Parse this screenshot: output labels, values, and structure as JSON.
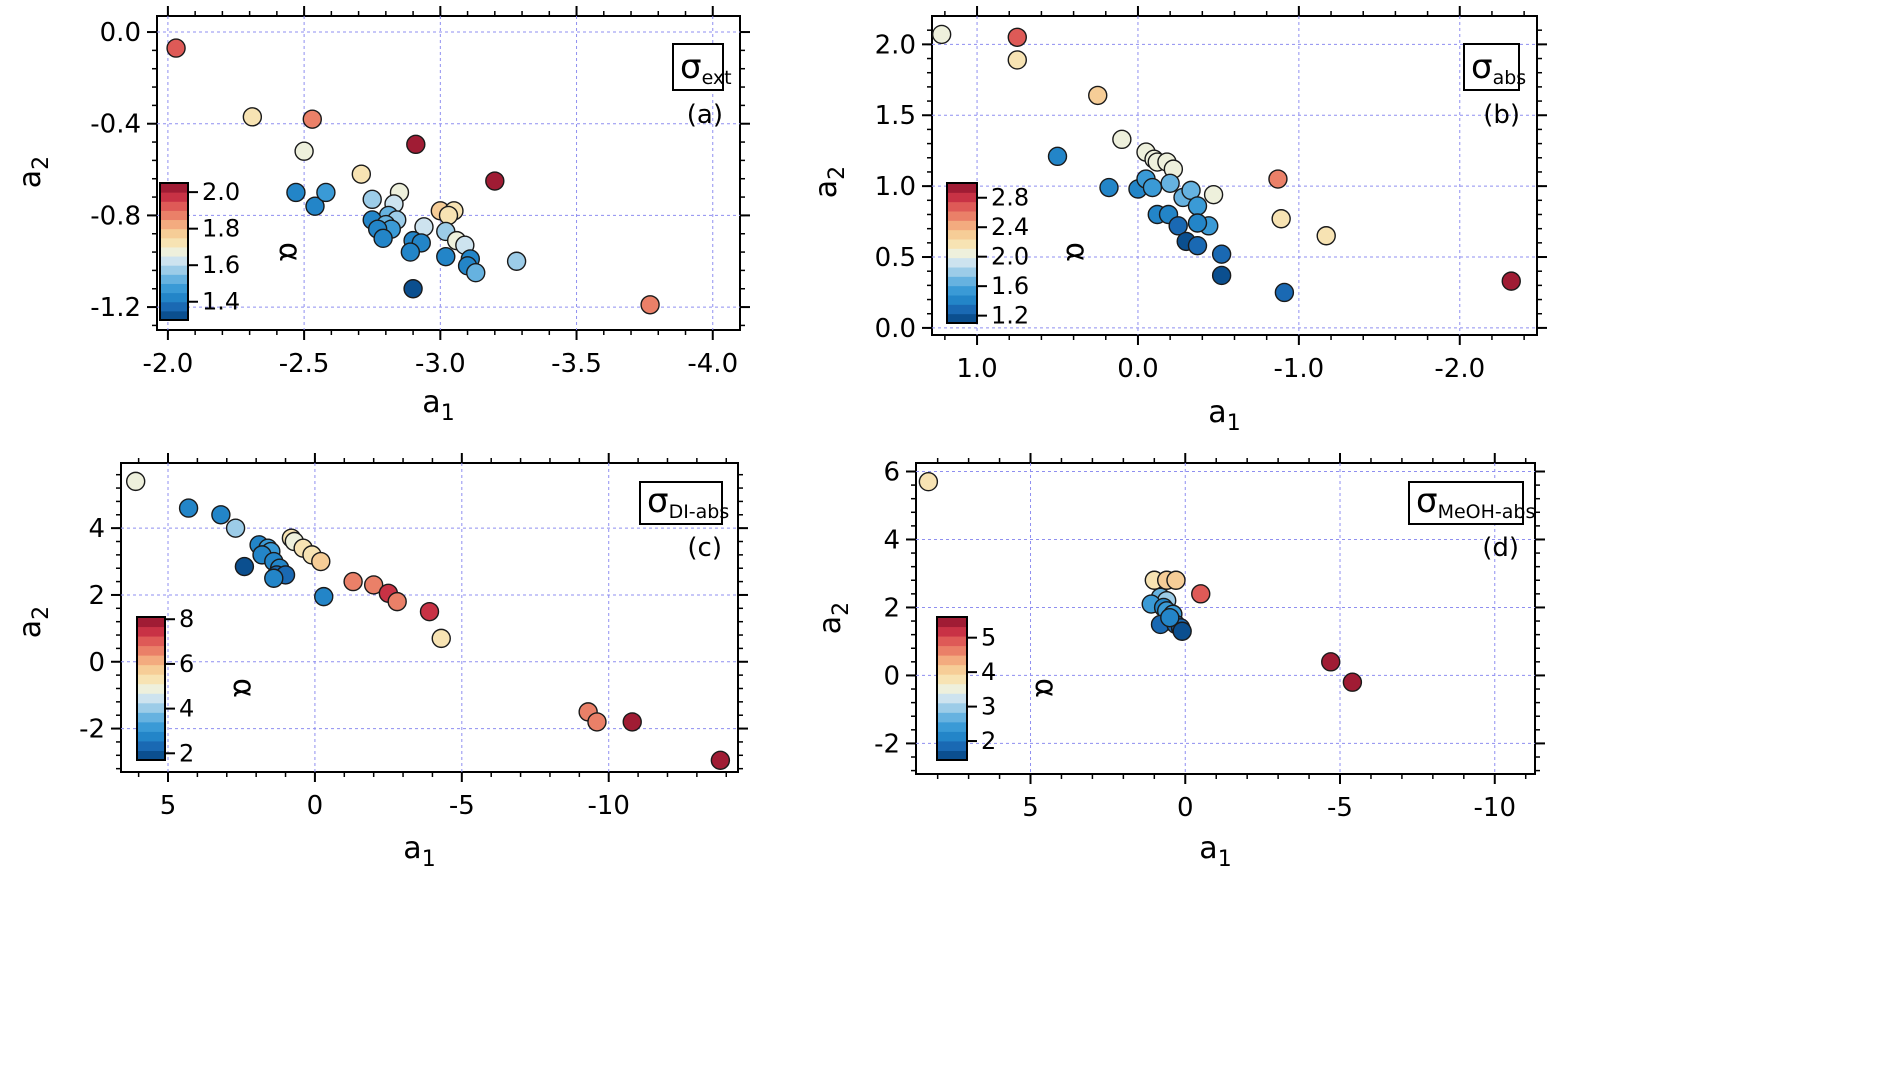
{
  "colorbar_palette": [
    "#0b4f8f",
    "#1a69b3",
    "#2385c8",
    "#3a9ad6",
    "#66b2e0",
    "#9ccce8",
    "#cde3ef",
    "#eef0dc",
    "#f7e3b3",
    "#f6cd97",
    "#f3ab7f",
    "#ea8068",
    "#de5a57",
    "#c83245",
    "#a01c34"
  ],
  "colorbar_label": "α",
  "chart_data": [
    {
      "type": "scatter",
      "panel_tag": "(a)",
      "title_main": "σ",
      "title_sub": "ext",
      "xlabel_main": "a",
      "xlabel_sub": "1",
      "ylabel_main": "a",
      "ylabel_sub": "2",
      "xlim": [
        -1.96,
        -4.1
      ],
      "ylim": [
        -1.3,
        0.07
      ],
      "xticks": [
        -2.0,
        -2.5,
        -3.0,
        -3.5,
        -4.0
      ],
      "xtick_labels": [
        "-2.0",
        "-2.5",
        "-3.0",
        "-3.5",
        "-4.0"
      ],
      "yticks": [
        0.0,
        -0.4,
        -0.8,
        -1.2
      ],
      "ytick_labels": [
        "0.0",
        "-0.4",
        "-0.8",
        "-1.2"
      ],
      "colorbar": {
        "range": [
          1.3,
          2.05
        ],
        "ticks": [
          1.4,
          1.6,
          1.8,
          2.0
        ],
        "tick_labels": [
          "1.4",
          "1.6",
          "1.8",
          "2.0"
        ]
      },
      "points": [
        {
          "x": -2.03,
          "y": -0.07,
          "c": 1.92
        },
        {
          "x": -2.31,
          "y": -0.37,
          "c": 1.72
        },
        {
          "x": -2.53,
          "y": -0.38,
          "c": 1.88
        },
        {
          "x": -2.5,
          "y": -0.52,
          "c": 1.68
        },
        {
          "x": -2.91,
          "y": -0.49,
          "c": 2.03
        },
        {
          "x": -3.2,
          "y": -0.65,
          "c": 2.03
        },
        {
          "x": -2.71,
          "y": -0.62,
          "c": 1.74
        },
        {
          "x": -2.47,
          "y": -0.7,
          "c": 1.45
        },
        {
          "x": -2.54,
          "y": -0.76,
          "c": 1.43
        },
        {
          "x": -2.58,
          "y": -0.7,
          "c": 1.47
        },
        {
          "x": -2.75,
          "y": -0.73,
          "c": 1.58
        },
        {
          "x": -2.85,
          "y": -0.7,
          "c": 1.66
        },
        {
          "x": -2.83,
          "y": -0.75,
          "c": 1.62
        },
        {
          "x": -3.0,
          "y": -0.78,
          "c": 1.75
        },
        {
          "x": -3.05,
          "y": -0.78,
          "c": 1.72
        },
        {
          "x": -3.03,
          "y": -0.8,
          "c": 1.72
        },
        {
          "x": -2.81,
          "y": -0.8,
          "c": 1.5
        },
        {
          "x": -2.84,
          "y": -0.82,
          "c": 1.58
        },
        {
          "x": -2.75,
          "y": -0.82,
          "c": 1.45
        },
        {
          "x": -2.8,
          "y": -0.84,
          "c": 1.5
        },
        {
          "x": -2.82,
          "y": -0.86,
          "c": 1.48
        },
        {
          "x": -2.77,
          "y": -0.86,
          "c": 1.42
        },
        {
          "x": -2.94,
          "y": -0.85,
          "c": 1.6
        },
        {
          "x": -3.02,
          "y": -0.87,
          "c": 1.58
        },
        {
          "x": -2.79,
          "y": -0.9,
          "c": 1.43
        },
        {
          "x": -2.9,
          "y": -0.91,
          "c": 1.42
        },
        {
          "x": -2.93,
          "y": -0.92,
          "c": 1.44
        },
        {
          "x": -3.06,
          "y": -0.91,
          "c": 1.68
        },
        {
          "x": -3.09,
          "y": -0.93,
          "c": 1.6
        },
        {
          "x": -2.89,
          "y": -0.96,
          "c": 1.45
        },
        {
          "x": -3.02,
          "y": -0.98,
          "c": 1.44
        },
        {
          "x": -3.11,
          "y": -0.99,
          "c": 1.44
        },
        {
          "x": -3.1,
          "y": -1.02,
          "c": 1.45
        },
        {
          "x": -3.13,
          "y": -1.05,
          "c": 1.52
        },
        {
          "x": -3.28,
          "y": -1.0,
          "c": 1.58
        },
        {
          "x": -2.9,
          "y": -1.12,
          "c": 1.32
        },
        {
          "x": -3.77,
          "y": -1.19,
          "c": 1.88
        }
      ]
    },
    {
      "type": "scatter",
      "panel_tag": "(b)",
      "title_main": "σ",
      "title_sub": "abs",
      "xlabel_main": "a",
      "xlabel_sub": "1",
      "ylabel_main": "a",
      "ylabel_sub": "2",
      "xlim": [
        1.28,
        -2.48
      ],
      "ylim": [
        -0.05,
        2.2
      ],
      "xticks": [
        1.0,
        0.0,
        -1.0,
        -2.0
      ],
      "xtick_labels": [
        "1.0",
        "0.0",
        "-1.0",
        "-2.0"
      ],
      "yticks": [
        0.0,
        0.5,
        1.0,
        1.5,
        2.0
      ],
      "ytick_labels": [
        "0.0",
        "0.5",
        "1.0",
        "1.5",
        "2.0"
      ],
      "colorbar": {
        "range": [
          1.1,
          3.0
        ],
        "ticks": [
          1.2,
          1.6,
          2.0,
          2.4,
          2.8
        ],
        "tick_labels": [
          "1.2",
          "1.6",
          "2.0",
          "2.4",
          "2.8"
        ]
      },
      "points": [
        {
          "x": 1.22,
          "y": 2.07,
          "c": 2.05
        },
        {
          "x": 0.75,
          "y": 2.05,
          "c": 2.65
        },
        {
          "x": 0.75,
          "y": 1.89,
          "c": 2.2
        },
        {
          "x": 0.25,
          "y": 1.64,
          "c": 2.35
        },
        {
          "x": 0.1,
          "y": 1.33,
          "c": 2.05
        },
        {
          "x": -0.05,
          "y": 1.24,
          "c": 2.05
        },
        {
          "x": -0.1,
          "y": 1.19,
          "c": 2.02
        },
        {
          "x": -0.12,
          "y": 1.17,
          "c": 2.08
        },
        {
          "x": -0.18,
          "y": 1.17,
          "c": 2.03
        },
        {
          "x": -0.22,
          "y": 1.12,
          "c": 2.0
        },
        {
          "x": 0.5,
          "y": 1.21,
          "c": 1.4
        },
        {
          "x": 0.18,
          "y": 0.99,
          "c": 1.4
        },
        {
          "x": 0.0,
          "y": 0.98,
          "c": 1.45
        },
        {
          "x": -0.05,
          "y": 1.05,
          "c": 1.5
        },
        {
          "x": -0.09,
          "y": 0.99,
          "c": 1.5
        },
        {
          "x": -0.2,
          "y": 1.02,
          "c": 1.62
        },
        {
          "x": -0.28,
          "y": 0.92,
          "c": 1.62
        },
        {
          "x": -0.33,
          "y": 0.97,
          "c": 1.66
        },
        {
          "x": -0.37,
          "y": 0.86,
          "c": 1.55
        },
        {
          "x": -0.47,
          "y": 0.94,
          "c": 2.05
        },
        {
          "x": -0.44,
          "y": 0.72,
          "c": 1.6
        },
        {
          "x": -0.12,
          "y": 0.8,
          "c": 1.4
        },
        {
          "x": -0.19,
          "y": 0.8,
          "c": 1.4
        },
        {
          "x": -0.25,
          "y": 0.72,
          "c": 1.35
        },
        {
          "x": -0.37,
          "y": 0.74,
          "c": 1.4
        },
        {
          "x": -0.3,
          "y": 0.61,
          "c": 1.15
        },
        {
          "x": -0.37,
          "y": 0.58,
          "c": 1.3
        },
        {
          "x": -0.52,
          "y": 0.52,
          "c": 1.35
        },
        {
          "x": -0.52,
          "y": 0.37,
          "c": 1.15
        },
        {
          "x": -0.87,
          "y": 1.05,
          "c": 2.55
        },
        {
          "x": -0.89,
          "y": 0.77,
          "c": 2.2
        },
        {
          "x": -0.91,
          "y": 0.25,
          "c": 1.35
        },
        {
          "x": -1.17,
          "y": 0.65,
          "c": 2.2
        },
        {
          "x": -2.32,
          "y": 0.33,
          "c": 3.0
        }
      ]
    },
    {
      "type": "scatter",
      "panel_tag": "(c)",
      "title_main": "σ",
      "title_sub": "DI-abs",
      "xlabel_main": "a",
      "xlabel_sub": "1",
      "ylabel_main": "a",
      "ylabel_sub": "2",
      "xlim": [
        6.6,
        -14.4
      ],
      "ylim": [
        -3.3,
        5.95
      ],
      "xticks": [
        5,
        0,
        -5,
        -10
      ],
      "xtick_labels": [
        "5",
        "0",
        "-5",
        "-10"
      ],
      "yticks": [
        -2,
        0,
        2,
        4
      ],
      "ytick_labels": [
        "-2",
        "0",
        "2",
        "4"
      ],
      "colorbar": {
        "range": [
          1.7,
          8.1
        ],
        "ticks": [
          2,
          4,
          6,
          8
        ],
        "tick_labels": [
          "2",
          "4",
          "6",
          "8"
        ]
      },
      "points": [
        {
          "x": 6.1,
          "y": 5.4,
          "c": 5.0
        },
        {
          "x": 4.3,
          "y": 4.6,
          "c": 2.6
        },
        {
          "x": 3.2,
          "y": 4.4,
          "c": 2.8
        },
        {
          "x": 2.7,
          "y": 4.0,
          "c": 3.9
        },
        {
          "x": 1.9,
          "y": 3.5,
          "c": 2.8
        },
        {
          "x": 1.6,
          "y": 3.4,
          "c": 3.0
        },
        {
          "x": 1.5,
          "y": 3.3,
          "c": 3.2
        },
        {
          "x": 1.8,
          "y": 3.2,
          "c": 2.9
        },
        {
          "x": 1.4,
          "y": 3.0,
          "c": 2.8
        },
        {
          "x": 1.2,
          "y": 2.8,
          "c": 2.7
        },
        {
          "x": 1.3,
          "y": 2.6,
          "c": 2.5
        },
        {
          "x": 1.0,
          "y": 2.6,
          "c": 2.4
        },
        {
          "x": 1.4,
          "y": 2.5,
          "c": 2.6
        },
        {
          "x": 2.4,
          "y": 2.85,
          "c": 1.9
        },
        {
          "x": 0.8,
          "y": 3.7,
          "c": 5.2
        },
        {
          "x": 0.7,
          "y": 3.6,
          "c": 5.1
        },
        {
          "x": 0.4,
          "y": 3.4,
          "c": 5.2
        },
        {
          "x": 0.1,
          "y": 3.2,
          "c": 5.2
        },
        {
          "x": -0.2,
          "y": 3.0,
          "c": 5.6
        },
        {
          "x": -0.3,
          "y": 1.95,
          "c": 2.6
        },
        {
          "x": -1.3,
          "y": 2.4,
          "c": 6.4
        },
        {
          "x": -2.0,
          "y": 2.3,
          "c": 6.7
        },
        {
          "x": -2.5,
          "y": 2.05,
          "c": 7.3
        },
        {
          "x": -2.8,
          "y": 1.8,
          "c": 6.6
        },
        {
          "x": -3.9,
          "y": 1.5,
          "c": 7.3
        },
        {
          "x": -4.3,
          "y": 0.7,
          "c": 5.4
        },
        {
          "x": -9.3,
          "y": -1.5,
          "c": 6.5
        },
        {
          "x": -9.6,
          "y": -1.8,
          "c": 6.4
        },
        {
          "x": -10.8,
          "y": -1.8,
          "c": 8.2
        },
        {
          "x": -13.8,
          "y": -2.95,
          "c": 8.4
        }
      ]
    },
    {
      "type": "scatter",
      "panel_tag": "(d)",
      "title_main": "σ",
      "title_sub": "MeOH-abs",
      "xlabel_main": "a",
      "xlabel_sub": "1",
      "ylabel_main": "a",
      "ylabel_sub": "2",
      "xlim": [
        8.7,
        -11.3
      ],
      "ylim": [
        -2.9,
        6.25
      ],
      "xticks": [
        5,
        0,
        -5,
        -10
      ],
      "xtick_labels": [
        "5",
        "0",
        "-5",
        "-10"
      ],
      "yticks": [
        -2,
        0,
        2,
        4,
        6
      ],
      "ytick_labels": [
        "-2",
        "0",
        "2",
        "4",
        "6"
      ],
      "colorbar": {
        "range": [
          1.45,
          5.6
        ],
        "ticks": [
          2,
          3,
          4,
          5
        ],
        "tick_labels": [
          "2",
          "3",
          "4",
          "5"
        ]
      },
      "points": [
        {
          "x": 8.3,
          "y": 5.7,
          "c": 3.8
        },
        {
          "x": 1.0,
          "y": 2.8,
          "c": 3.9
        },
        {
          "x": 0.6,
          "y": 2.8,
          "c": 4.0
        },
        {
          "x": 0.3,
          "y": 2.8,
          "c": 4.2
        },
        {
          "x": -0.5,
          "y": 2.4,
          "c": 4.9
        },
        {
          "x": 0.8,
          "y": 2.3,
          "c": 2.8
        },
        {
          "x": 0.6,
          "y": 2.2,
          "c": 2.9
        },
        {
          "x": 1.1,
          "y": 2.1,
          "c": 2.4
        },
        {
          "x": 0.7,
          "y": 2.0,
          "c": 2.2
        },
        {
          "x": 0.6,
          "y": 1.9,
          "c": 2.3
        },
        {
          "x": 0.4,
          "y": 1.8,
          "c": 2.3
        },
        {
          "x": 0.5,
          "y": 1.6,
          "c": 2.2
        },
        {
          "x": 0.8,
          "y": 1.5,
          "c": 2.0
        },
        {
          "x": 0.3,
          "y": 1.5,
          "c": 1.9
        },
        {
          "x": 0.15,
          "y": 1.4,
          "c": 1.8
        },
        {
          "x": 0.1,
          "y": 1.3,
          "c": 1.7
        },
        {
          "x": 0.5,
          "y": 1.7,
          "c": 2.1
        },
        {
          "x": -4.7,
          "y": 0.4,
          "c": 5.6
        },
        {
          "x": -5.4,
          "y": -0.2,
          "c": 5.4
        }
      ]
    }
  ]
}
